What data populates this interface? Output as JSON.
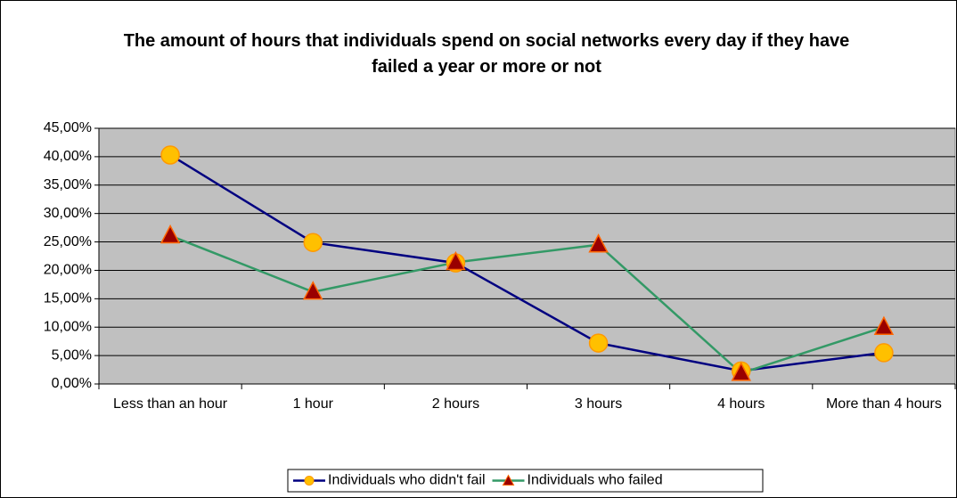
{
  "chart_data": {
    "type": "line",
    "title": "The amount of hours that individuals spend on social networks every day if they have failed a year or more or not",
    "categories": [
      "Less than an hour",
      "1 hour",
      "2 hours",
      "3 hours",
      "4 hours",
      "More than 4 hours"
    ],
    "series": [
      {
        "name": "Individuals who didn't fail",
        "color": "#000080",
        "marker": "circle",
        "marker_color": "#ffc000",
        "values": [
          40.3,
          24.9,
          21.3,
          7.2,
          2.3,
          5.5
        ]
      },
      {
        "name": "Individuals who failed",
        "color": "#339966",
        "marker": "triangle",
        "marker_color": "#990000",
        "values": [
          26.1,
          16.2,
          21.4,
          24.5,
          1.9,
          10.0
        ]
      }
    ],
    "ylim": [
      0,
      45
    ],
    "yticks": [
      {
        "value": 0,
        "label": "0,00%"
      },
      {
        "value": 5,
        "label": "5,00%"
      },
      {
        "value": 10,
        "label": "10,00%"
      },
      {
        "value": 15,
        "label": "15,00%"
      },
      {
        "value": 20,
        "label": "20,00%"
      },
      {
        "value": 25,
        "label": "25,00%"
      },
      {
        "value": 30,
        "label": "30,00%"
      },
      {
        "value": 35,
        "label": "35,00%"
      },
      {
        "value": 40,
        "label": "40,00%"
      },
      {
        "value": 45,
        "label": "45,00%"
      }
    ],
    "grid": true,
    "legend": "bottom"
  }
}
